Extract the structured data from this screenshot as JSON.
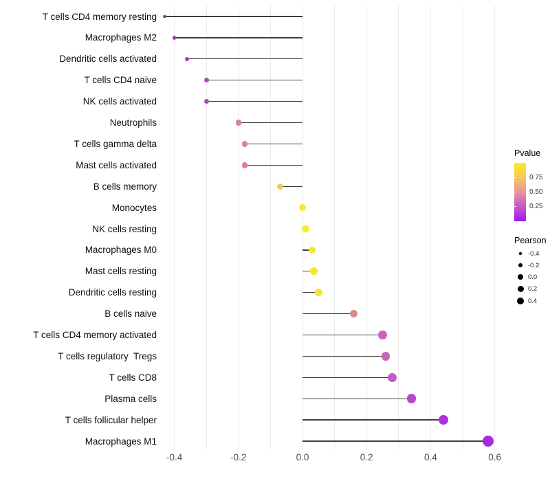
{
  "chart_data": {
    "type": "scatter",
    "subtype": "lollipop",
    "title": "",
    "xlabel": "",
    "ylabel": "",
    "xlim": [
      -0.444,
      0.637
    ],
    "grid": "vertical only, every 0.1",
    "stem_anchor": 0.0,
    "x_ticks": [
      {
        "label": "-0.4",
        "value": -0.4
      },
      {
        "label": "-0.2",
        "value": -0.2
      },
      {
        "label": "0.0",
        "value": 0.0
      },
      {
        "label": "0.2",
        "value": 0.2
      },
      {
        "label": "0.4",
        "value": 0.4
      },
      {
        "label": "0.6",
        "value": 0.6
      }
    ],
    "x_gridline_values": [
      -0.4,
      -0.3,
      -0.2,
      -0.1,
      0.0,
      0.1,
      0.2,
      0.3,
      0.4,
      0.5,
      0.6
    ],
    "rows": [
      {
        "label": "T cells CD4 memory resting",
        "pearson": -0.43,
        "color": "#9B34B0",
        "r": 2.2
      },
      {
        "label": "Macrophages M2",
        "pearson": -0.4,
        "color": "#A039B6",
        "r": 2.8
      },
      {
        "label": "Dendritic cells activated",
        "pearson": -0.36,
        "color": "#A53FBB",
        "r": 3.2
      },
      {
        "label": "T cells CD4 naive",
        "pearson": -0.3,
        "color": "#AF4BC0",
        "r": 3.6
      },
      {
        "label": "NK cells activated",
        "pearson": -0.3,
        "color": "#AF4BC0",
        "r": 3.6
      },
      {
        "label": "Neutrophils",
        "pearson": -0.2,
        "color": "#DA8490",
        "r": 4.2
      },
      {
        "label": "T cells gamma delta",
        "pearson": -0.18,
        "color": "#DA8490",
        "r": 4.3
      },
      {
        "label": "Mast cells activated",
        "pearson": -0.18,
        "color": "#DA8490",
        "r": 4.3
      },
      {
        "label": "B cells memory",
        "pearson": -0.07,
        "color": "#F0CB58",
        "r": 4.7
      },
      {
        "label": "Monocytes",
        "pearson": 0.0,
        "color": "#F8EB26",
        "r": 5.2
      },
      {
        "label": "NK cells resting",
        "pearson": 0.01,
        "color": "#F8EB26",
        "r": 5.2
      },
      {
        "label": "Macrophages M0",
        "pearson": 0.03,
        "color": "#F7E72C",
        "r": 5.4
      },
      {
        "label": "Mast cells resting",
        "pearson": 0.035,
        "color": "#F7E72C",
        "r": 5.4
      },
      {
        "label": "Dendritic cells resting",
        "pearson": 0.05,
        "color": "#F6E431",
        "r": 5.6
      },
      {
        "label": "B cells naive",
        "pearson": 0.16,
        "color": "#DD8B87",
        "r": 5.9
      },
      {
        "label": "T cells CD4 memory activated",
        "pearson": 0.25,
        "color": "#C765BB",
        "r": 6.2
      },
      {
        "label": "T cells regulatory  Tregs",
        "pearson": 0.26,
        "color": "#C765BB",
        "r": 6.3
      },
      {
        "label": "T cells CD8",
        "pearson": 0.28,
        "color": "#C25BC4",
        "r": 6.5
      },
      {
        "label": "Plasma cells",
        "pearson": 0.34,
        "color": "#B747D1",
        "r": 6.8
      },
      {
        "label": "T cells follicular helper",
        "pearson": 0.44,
        "color": "#AB32DC",
        "r": 7.2
      },
      {
        "label": "Macrophages M1",
        "pearson": 0.58,
        "color": "#A32BDD",
        "r": 8.0
      }
    ],
    "legend": {
      "position": "right",
      "pvalue": {
        "title": "Pvalue",
        "tick_labels": [
          {
            "label": "0.75",
            "value": 0.75
          },
          {
            "label": "0.50",
            "value": 0.5
          },
          {
            "label": "0.25",
            "value": 0.25
          }
        ],
        "gradient_top_to_bottom": [
          "#F9ED20",
          "#F5C95F",
          "#E795A0",
          "#C757CE",
          "#A414F2"
        ]
      },
      "pearson": {
        "title": "Pearson",
        "items": [
          {
            "label": "-0.4",
            "r": 1.7
          },
          {
            "label": "-0.2",
            "r": 2.9
          },
          {
            "label": "0.0",
            "r": 3.8
          },
          {
            "label": "0.2",
            "r": 4.5
          },
          {
            "label": "0.4",
            "r": 5.2
          }
        ]
      }
    },
    "colors": {
      "stem": "#3d3d3d",
      "gridline": "#ececec",
      "axis_text": "#4d4d4d",
      "label_text": "#0d0d0d"
    }
  }
}
